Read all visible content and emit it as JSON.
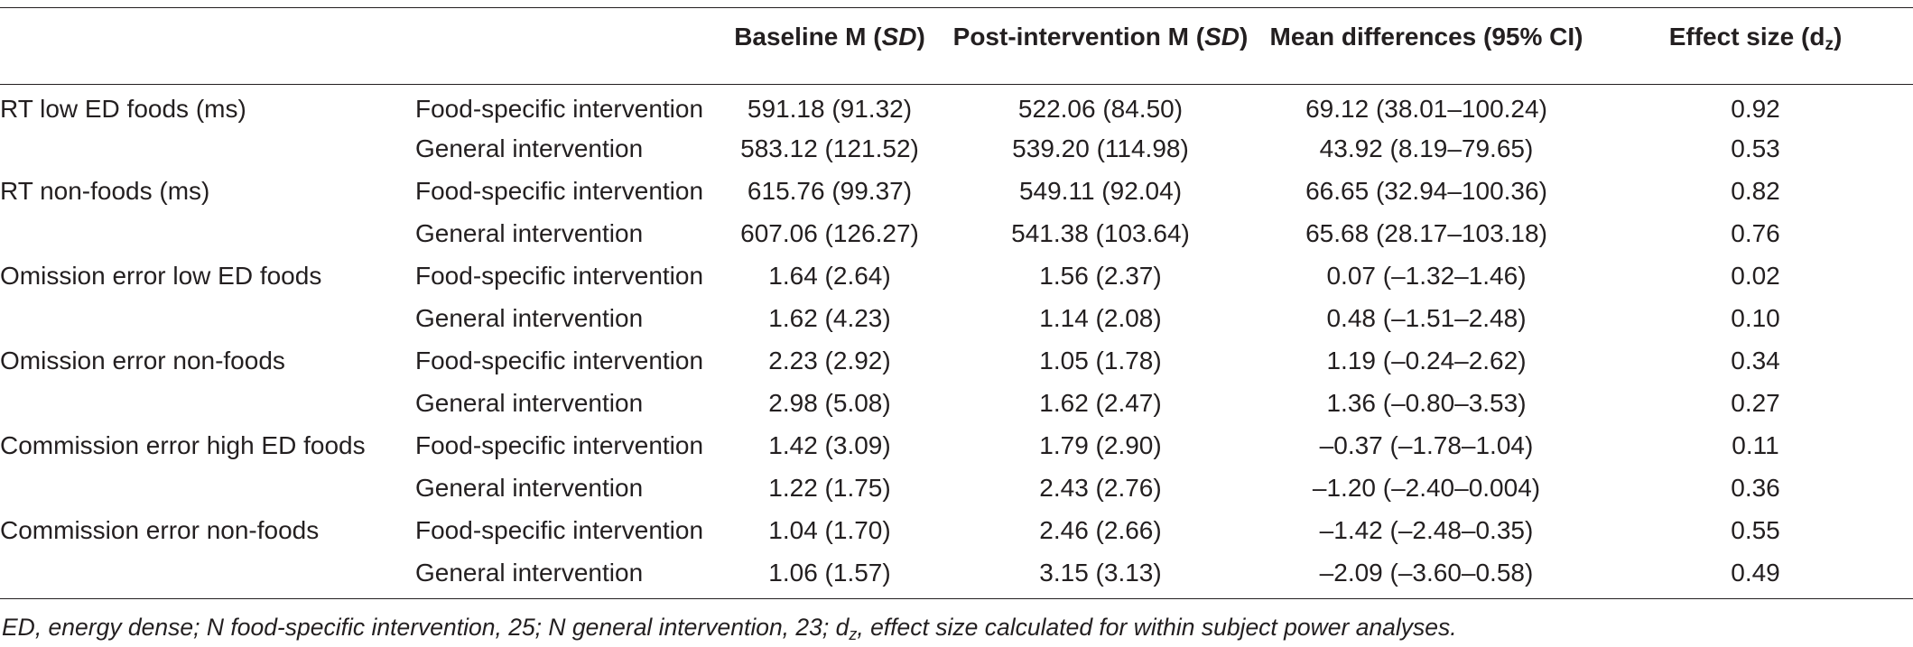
{
  "table": {
    "headers": {
      "baseline_label": "Baseline M",
      "baseline_sd": "SD",
      "post_label": "Post-intervention M",
      "post_sd": "SD",
      "diff_label": "Mean differences (95% CI)",
      "effect_label": "Effect size (d",
      "effect_sub": "z",
      "effect_close": ")"
    },
    "groups": [
      {
        "measure": "RT low ED foods (ms)",
        "rows": [
          {
            "group": "Food-specific intervention",
            "baseline": "591.18 (91.32)",
            "post": "522.06 (84.50)",
            "diff": "69.12 (38.01–100.24)",
            "effect": "0.92"
          },
          {
            "group": "General intervention",
            "baseline": "583.12 (121.52)",
            "post": "539.20 (114.98)",
            "diff": "43.92 (8.19–79.65)",
            "effect": "0.53"
          }
        ]
      },
      {
        "measure": "RT non-foods (ms)",
        "rows": [
          {
            "group": "Food-specific intervention",
            "baseline": "615.76 (99.37)",
            "post": "549.11 (92.04)",
            "diff": "66.65 (32.94–100.36)",
            "effect": "0.82"
          },
          {
            "group": "General intervention",
            "baseline": "607.06 (126.27)",
            "post": "541.38 (103.64)",
            "diff": "65.68 (28.17–103.18)",
            "effect": "0.76"
          }
        ]
      },
      {
        "measure": "Omission error low ED foods",
        "rows": [
          {
            "group": "Food-specific intervention",
            "baseline": "1.64 (2.64)",
            "post": "1.56 (2.37)",
            "diff": "0.07 (–1.32–1.46)",
            "effect": "0.02"
          },
          {
            "group": "General intervention",
            "baseline": "1.62 (4.23)",
            "post": "1.14 (2.08)",
            "diff": "0.48 (–1.51–2.48)",
            "effect": "0.10"
          }
        ]
      },
      {
        "measure": "Omission error non-foods",
        "rows": [
          {
            "group": "Food-specific intervention",
            "baseline": "2.23 (2.92)",
            "post": "1.05 (1.78)",
            "diff": "1.19 (–0.24–2.62)",
            "effect": "0.34"
          },
          {
            "group": "General intervention",
            "baseline": "2.98 (5.08)",
            "post": "1.62 (2.47)",
            "diff": "1.36 (–0.80–3.53)",
            "effect": "0.27"
          }
        ]
      },
      {
        "measure": "Commission error high ED foods",
        "rows": [
          {
            "group": "Food-specific intervention",
            "baseline": "1.42 (3.09)",
            "post": "1.79 (2.90)",
            "diff": "–0.37 (–1.78–1.04)",
            "effect": "0.11"
          },
          {
            "group": "General intervention",
            "baseline": "1.22 (1.75)",
            "post": "2.43 (2.76)",
            "diff": "–1.20 (–2.40–0.004)",
            "effect": "0.36"
          }
        ]
      },
      {
        "measure": "Commission error non-foods",
        "rows": [
          {
            "group": "Food-specific intervention",
            "baseline": "1.04 (1.70)",
            "post": "2.46 (2.66)",
            "diff": "–1.42 (–2.48–0.35)",
            "effect": "0.55"
          },
          {
            "group": "General intervention",
            "baseline": "1.06 (1.57)",
            "post": "3.15 (3.13)",
            "diff": "–2.09 (–3.60–0.58)",
            "effect": "0.49"
          }
        ]
      }
    ]
  },
  "footnote": {
    "part1": "ED, energy dense; N food-specific intervention, 25; N general intervention, 23; d",
    "sub": "z",
    "part2": ", effect size calculated for within subject power analyses."
  }
}
